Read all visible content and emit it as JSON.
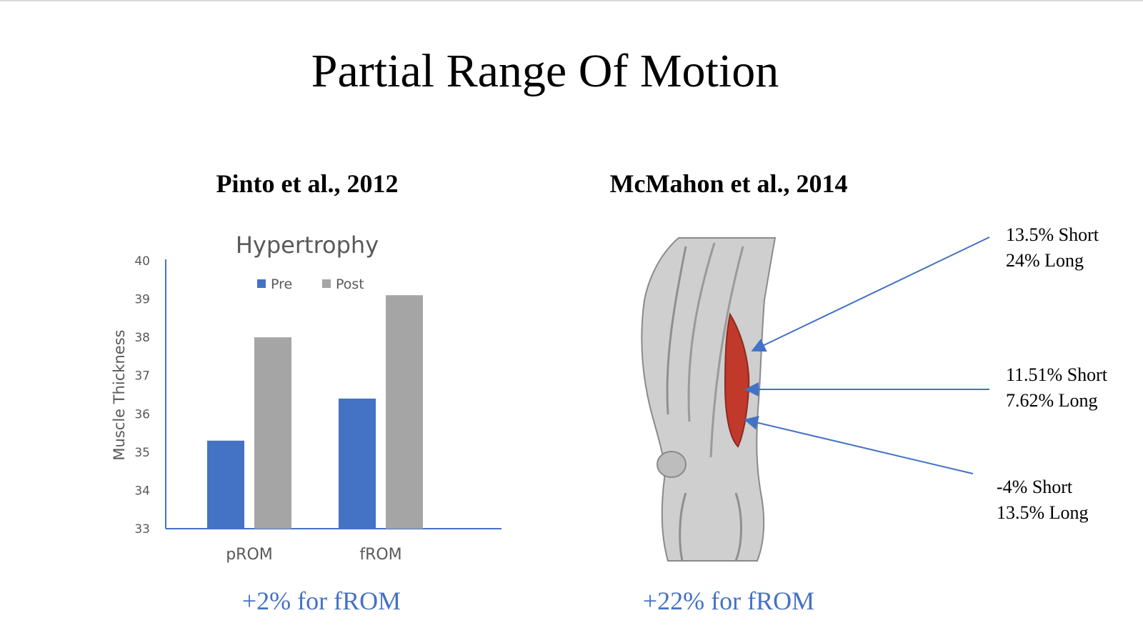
{
  "slide": {
    "title": "Partial Range Of Motion",
    "left": {
      "subtitle": "Pinto et al., 2012",
      "summary": "+2% for fROM"
    },
    "right": {
      "subtitle": "McMahon et al., 2014",
      "summary": "+22% for fROM",
      "labels": [
        {
          "line1": "13.5% Short",
          "line2": "24% Long"
        },
        {
          "line1": "11.51% Short",
          "line2": "7.62% Long"
        },
        {
          "line1": "-4% Short",
          "line2": "13.5% Long"
        }
      ],
      "image": {
        "icon": "leg-muscle-anatomy-illustration",
        "highlight_color": "#c0392b",
        "arrow_color": "#4472c4"
      }
    }
  },
  "chart_data": {
    "type": "bar",
    "title": "Hypertrophy",
    "xlabel": "",
    "ylabel": "Muscle Thickness",
    "categories": [
      "pROM",
      "fROM"
    ],
    "series": [
      {
        "name": "Pre",
        "values": [
          35.3,
          36.4
        ],
        "color": "#4472c4"
      },
      {
        "name": "Post",
        "values": [
          38.0,
          39.1
        ],
        "color": "#a5a5a5"
      }
    ],
    "ylim": [
      33,
      40
    ],
    "yticks": [
      "33",
      "34",
      "35",
      "36",
      "37",
      "38",
      "39",
      "40"
    ],
    "legend": "top",
    "grid": false
  }
}
